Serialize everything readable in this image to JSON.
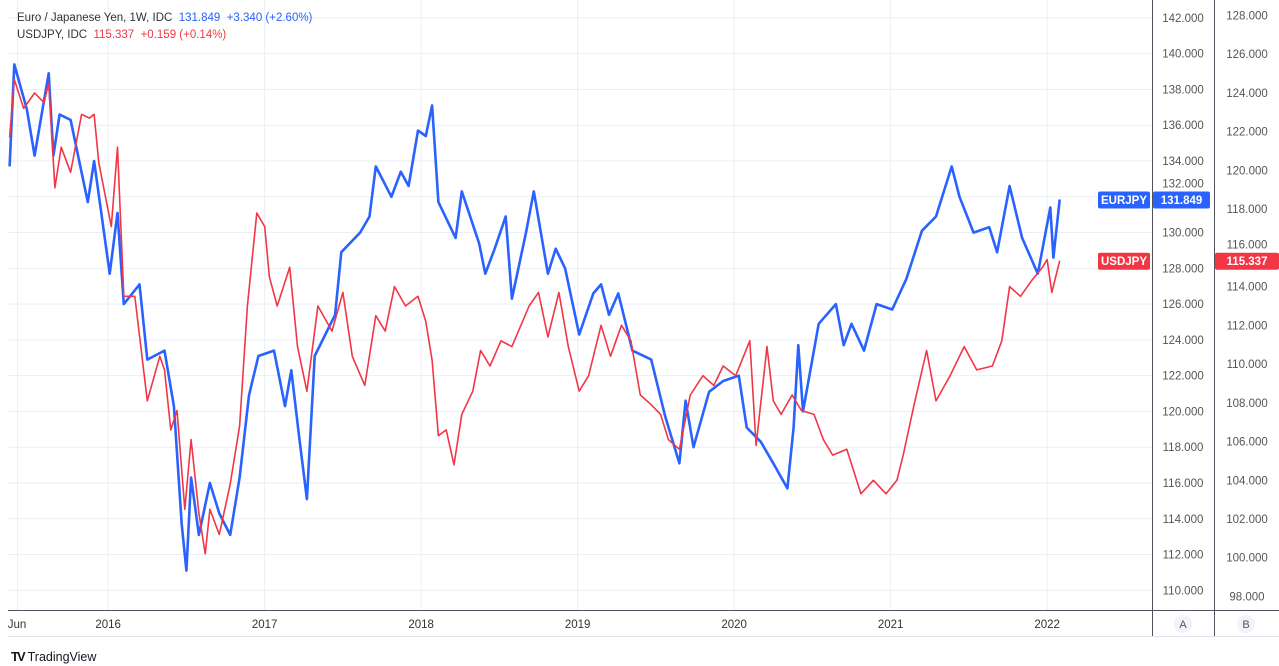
{
  "legend": {
    "eur_title": "Euro / Japanese Yen, 1W, IDC",
    "eur_last": "131.849",
    "eur_change": "+3.340 (+2.60%)",
    "usd_title": "USDJPY, IDC",
    "usd_last": "115.337",
    "usd_change": "+0.159 (+0.14%)"
  },
  "branding": {
    "logo_mark": "TV",
    "name": "TradingView"
  },
  "colors": {
    "eur": "#2962ff",
    "usd": "#f23645",
    "grid": "#e9eff5",
    "axis_text": "#555"
  },
  "chart_data": {
    "type": "line",
    "x_ticks": [
      "Jun",
      "2016",
      "2017",
      "2018",
      "2019",
      "2020",
      "2021",
      "2022"
    ],
    "x_tick_values": [
      2015.42,
      2016,
      2017,
      2018,
      2019,
      2020,
      2021,
      2022
    ],
    "xlim": [
      2015.36,
      2022.67
    ],
    "scale_a": {
      "name": "A",
      "ylim": [
        108.9,
        143.0
      ],
      "ticks": [
        110,
        112,
        114,
        116,
        118,
        120,
        122,
        124,
        126,
        128,
        130,
        132,
        134,
        136,
        138,
        140,
        142
      ]
    },
    "scale_b": {
      "name": "B",
      "ylim": [
        97.3,
        128.8
      ],
      "ticks": [
        98,
        100,
        102,
        104,
        106,
        108,
        110,
        112,
        114,
        116,
        118,
        120,
        122,
        124,
        126,
        128
      ]
    },
    "series": [
      {
        "name": "EURJPY",
        "scale": "A",
        "last_label": "131.849",
        "points": [
          [
            2015.37,
            133.7
          ],
          [
            2015.4,
            139.4
          ],
          [
            2015.48,
            136.9
          ],
          [
            2015.53,
            134.3
          ],
          [
            2015.62,
            138.9
          ],
          [
            2015.65,
            134.3
          ],
          [
            2015.69,
            136.6
          ],
          [
            2015.76,
            136.3
          ],
          [
            2015.87,
            131.7
          ],
          [
            2015.91,
            134.0
          ],
          [
            2016.01,
            127.7
          ],
          [
            2016.06,
            131.1
          ],
          [
            2016.1,
            126.0
          ],
          [
            2016.2,
            127.1
          ],
          [
            2016.25,
            122.9
          ],
          [
            2016.36,
            123.4
          ],
          [
            2016.42,
            120.3
          ],
          [
            2016.47,
            113.7
          ],
          [
            2016.5,
            111.1
          ],
          [
            2016.53,
            116.3
          ],
          [
            2016.58,
            113.1
          ],
          [
            2016.65,
            116.0
          ],
          [
            2016.71,
            114.3
          ],
          [
            2016.78,
            113.1
          ],
          [
            2016.84,
            116.3
          ],
          [
            2016.9,
            120.9
          ],
          [
            2016.96,
            123.1
          ],
          [
            2017.06,
            123.4
          ],
          [
            2017.13,
            120.3
          ],
          [
            2017.17,
            122.3
          ],
          [
            2017.22,
            118.6
          ],
          [
            2017.27,
            115.1
          ],
          [
            2017.32,
            123.1
          ],
          [
            2017.45,
            125.4
          ],
          [
            2017.49,
            128.9
          ],
          [
            2017.61,
            130.0
          ],
          [
            2017.67,
            130.9
          ],
          [
            2017.71,
            133.7
          ],
          [
            2017.81,
            132.0
          ],
          [
            2017.87,
            133.4
          ],
          [
            2017.92,
            132.6
          ],
          [
            2017.98,
            135.7
          ],
          [
            2018.03,
            135.4
          ],
          [
            2018.07,
            137.1
          ],
          [
            2018.11,
            131.7
          ],
          [
            2018.22,
            129.7
          ],
          [
            2018.26,
            132.3
          ],
          [
            2018.37,
            129.4
          ],
          [
            2018.41,
            127.7
          ],
          [
            2018.47,
            129.1
          ],
          [
            2018.54,
            130.9
          ],
          [
            2018.58,
            126.3
          ],
          [
            2018.67,
            130.0
          ],
          [
            2018.72,
            132.3
          ],
          [
            2018.81,
            127.7
          ],
          [
            2018.86,
            129.1
          ],
          [
            2018.92,
            128.0
          ],
          [
            2019.01,
            124.3
          ],
          [
            2019.1,
            126.6
          ],
          [
            2019.15,
            127.1
          ],
          [
            2019.2,
            125.4
          ],
          [
            2019.26,
            126.6
          ],
          [
            2019.35,
            123.4
          ],
          [
            2019.47,
            122.9
          ],
          [
            2019.56,
            119.7
          ],
          [
            2019.65,
            117.1
          ],
          [
            2019.69,
            120.6
          ],
          [
            2019.74,
            118.0
          ],
          [
            2019.84,
            121.1
          ],
          [
            2019.93,
            121.7
          ],
          [
            2020.03,
            122.0
          ],
          [
            2020.08,
            119.1
          ],
          [
            2020.17,
            118.3
          ],
          [
            2020.25,
            117.1
          ],
          [
            2020.34,
            115.7
          ],
          [
            2020.38,
            119.1
          ],
          [
            2020.41,
            123.7
          ],
          [
            2020.44,
            120.0
          ],
          [
            2020.54,
            124.9
          ],
          [
            2020.65,
            126.0
          ],
          [
            2020.7,
            123.7
          ],
          [
            2020.75,
            124.9
          ],
          [
            2020.83,
            123.4
          ],
          [
            2020.91,
            126.0
          ],
          [
            2021.01,
            125.7
          ],
          [
            2021.1,
            127.4
          ],
          [
            2021.2,
            130.1
          ],
          [
            2021.29,
            130.9
          ],
          [
            2021.39,
            133.7
          ],
          [
            2021.44,
            132.0
          ],
          [
            2021.53,
            130.0
          ],
          [
            2021.63,
            130.3
          ],
          [
            2021.68,
            128.9
          ],
          [
            2021.76,
            132.6
          ],
          [
            2021.84,
            129.7
          ],
          [
            2021.94,
            127.7
          ],
          [
            2022.02,
            131.4
          ],
          [
            2022.04,
            128.6
          ],
          [
            2022.08,
            131.849
          ]
        ]
      },
      {
        "name": "USDJPY",
        "scale": "B",
        "last_label": "115.337",
        "points": [
          [
            2015.37,
            121.7
          ],
          [
            2015.4,
            124.7
          ],
          [
            2015.46,
            123.2
          ],
          [
            2015.53,
            124.0
          ],
          [
            2015.59,
            123.5
          ],
          [
            2015.62,
            124.5
          ],
          [
            2015.66,
            119.1
          ],
          [
            2015.7,
            121.2
          ],
          [
            2015.76,
            119.9
          ],
          [
            2015.83,
            122.9
          ],
          [
            2015.88,
            122.7
          ],
          [
            2015.91,
            122.9
          ],
          [
            2015.94,
            120.4
          ],
          [
            2016.02,
            117.1
          ],
          [
            2016.06,
            121.2
          ],
          [
            2016.1,
            113.5
          ],
          [
            2016.17,
            113.5
          ],
          [
            2016.25,
            108.1
          ],
          [
            2016.33,
            110.4
          ],
          [
            2016.36,
            109.7
          ],
          [
            2016.4,
            106.6
          ],
          [
            2016.44,
            107.6
          ],
          [
            2016.49,
            102.5
          ],
          [
            2016.53,
            106.1
          ],
          [
            2016.58,
            102.3
          ],
          [
            2016.62,
            100.2
          ],
          [
            2016.65,
            102.5
          ],
          [
            2016.71,
            101.2
          ],
          [
            2016.78,
            103.8
          ],
          [
            2016.84,
            106.8
          ],
          [
            2016.89,
            113.0
          ],
          [
            2016.95,
            117.8
          ],
          [
            2017.0,
            117.1
          ],
          [
            2017.03,
            114.5
          ],
          [
            2017.08,
            113.0
          ],
          [
            2017.16,
            115.0
          ],
          [
            2017.21,
            110.9
          ],
          [
            2017.27,
            108.6
          ],
          [
            2017.34,
            113.0
          ],
          [
            2017.43,
            111.7
          ],
          [
            2017.5,
            113.7
          ],
          [
            2017.56,
            110.4
          ],
          [
            2017.64,
            108.9
          ],
          [
            2017.71,
            112.5
          ],
          [
            2017.77,
            111.7
          ],
          [
            2017.83,
            114.0
          ],
          [
            2017.9,
            113.0
          ],
          [
            2017.98,
            113.5
          ],
          [
            2018.03,
            112.2
          ],
          [
            2018.07,
            110.2
          ],
          [
            2018.11,
            106.3
          ],
          [
            2018.16,
            106.6
          ],
          [
            2018.21,
            104.8
          ],
          [
            2018.26,
            107.4
          ],
          [
            2018.33,
            108.6
          ],
          [
            2018.38,
            110.7
          ],
          [
            2018.44,
            109.9
          ],
          [
            2018.51,
            111.2
          ],
          [
            2018.58,
            110.9
          ],
          [
            2018.69,
            113.0
          ],
          [
            2018.75,
            113.7
          ],
          [
            2018.81,
            111.4
          ],
          [
            2018.88,
            113.7
          ],
          [
            2018.94,
            110.9
          ],
          [
            2019.01,
            108.6
          ],
          [
            2019.07,
            109.4
          ],
          [
            2019.15,
            112.0
          ],
          [
            2019.21,
            110.4
          ],
          [
            2019.28,
            112.0
          ],
          [
            2019.34,
            111.2
          ],
          [
            2019.4,
            108.4
          ],
          [
            2019.47,
            107.9
          ],
          [
            2019.53,
            107.4
          ],
          [
            2019.58,
            106.1
          ],
          [
            2019.65,
            105.6
          ],
          [
            2019.72,
            108.4
          ],
          [
            2019.8,
            109.4
          ],
          [
            2019.87,
            108.9
          ],
          [
            2019.93,
            109.9
          ],
          [
            2020.01,
            109.4
          ],
          [
            2020.1,
            111.2
          ],
          [
            2020.14,
            105.8
          ],
          [
            2020.21,
            110.9
          ],
          [
            2020.25,
            108.1
          ],
          [
            2020.3,
            107.4
          ],
          [
            2020.37,
            108.4
          ],
          [
            2020.43,
            107.6
          ],
          [
            2020.51,
            107.4
          ],
          [
            2020.57,
            106.1
          ],
          [
            2020.63,
            105.3
          ],
          [
            2020.72,
            105.6
          ],
          [
            2020.81,
            103.3
          ],
          [
            2020.89,
            104.0
          ],
          [
            2020.97,
            103.3
          ],
          [
            2021.04,
            104.0
          ],
          [
            2021.08,
            105.3
          ],
          [
            2021.15,
            107.9
          ],
          [
            2021.23,
            110.7
          ],
          [
            2021.29,
            108.1
          ],
          [
            2021.38,
            109.4
          ],
          [
            2021.47,
            110.9
          ],
          [
            2021.55,
            109.7
          ],
          [
            2021.65,
            109.9
          ],
          [
            2021.71,
            111.2
          ],
          [
            2021.76,
            114.0
          ],
          [
            2021.83,
            113.5
          ],
          [
            2021.9,
            114.3
          ],
          [
            2021.97,
            115.0
          ],
          [
            2022.0,
            115.4
          ],
          [
            2022.03,
            113.7
          ],
          [
            2022.08,
            115.337
          ]
        ]
      }
    ]
  }
}
